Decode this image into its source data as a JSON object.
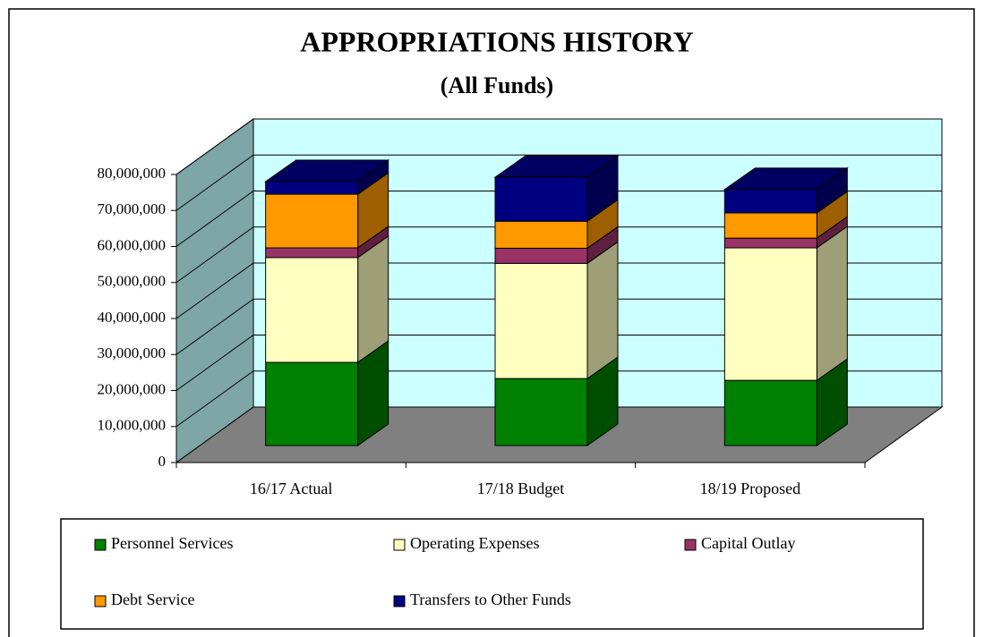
{
  "chart_data": {
    "type": "bar3d_stacked",
    "title": "APPROPRIATIONS HISTORY",
    "subtitle": "(All Funds)",
    "categories": [
      "16/17 Actual",
      "17/18 Budget",
      "18/19 Proposed"
    ],
    "series": [
      {
        "name": "Personnel Services",
        "color": "#008000",
        "values": [
          23100000,
          18600000,
          18100000
        ]
      },
      {
        "name": "Operating Expenses",
        "color": "#ffffc0",
        "values": [
          29100000,
          32000000,
          36800000
        ]
      },
      {
        "name": "Capital Outlay",
        "color": "#993366",
        "values": [
          2700000,
          4200000,
          2700000
        ]
      },
      {
        "name": "Debt Service",
        "color": "#ff9900",
        "values": [
          14900000,
          7500000,
          7000000
        ]
      },
      {
        "name": "Transfers to Other Funds",
        "color": "#000080",
        "values": [
          3500000,
          12200000,
          6500000
        ]
      }
    ],
    "ylim": [
      0,
      80000000
    ],
    "yticks": [
      0,
      {
        "value": 10000000,
        "label": "10,000,000"
      },
      {
        "value": 20000000,
        "label": "20,000,000"
      },
      {
        "value": 30000000,
        "label": "30,000,000"
      },
      {
        "value": 40000000,
        "label": "40,000,000"
      },
      {
        "value": 50000000,
        "label": "50,000,000"
      },
      {
        "value": 60000000,
        "label": "60,000,000"
      },
      {
        "value": 70000000,
        "label": "70,000,000"
      },
      {
        "value": 80000000,
        "label": "80,000,000"
      }
    ],
    "grid": true,
    "legend": "bottom"
  }
}
